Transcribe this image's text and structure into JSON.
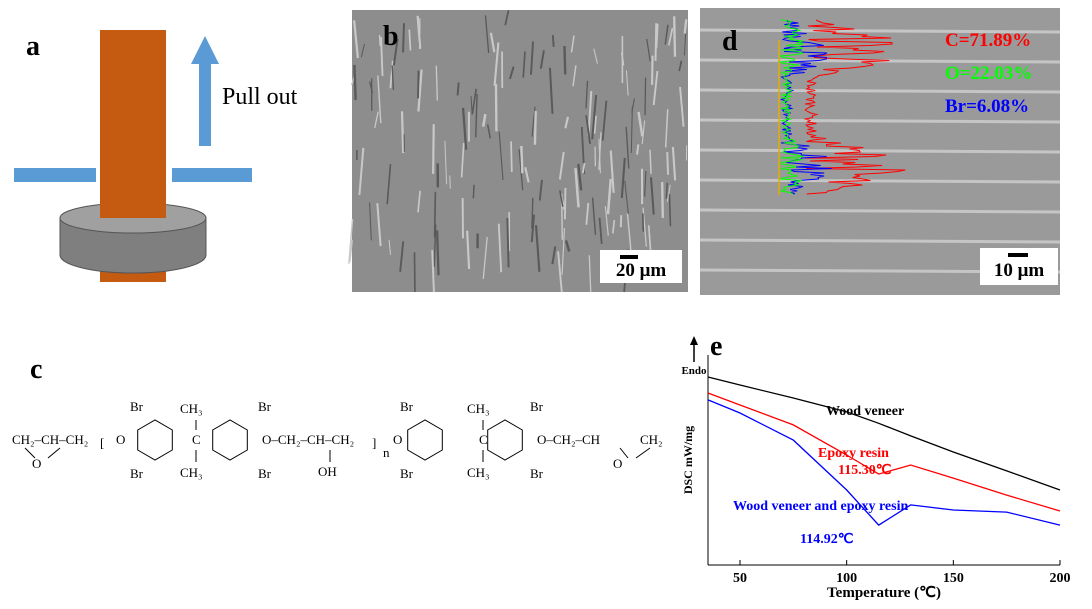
{
  "panels": {
    "a": {
      "label": "a",
      "annotation": "Pull out"
    },
    "b": {
      "label": "b",
      "scale_bar": "20 μm"
    },
    "c": {
      "label": "c",
      "fragments": [
        "CH₂–CH–CH₂",
        "O",
        "[",
        "O",
        "Br",
        "Br",
        "CH₃",
        "C",
        "CH₃",
        "Br",
        "Br",
        "O–CH₂–CH–CH₂",
        "OH",
        "]",
        "n",
        "O",
        "Br",
        "Br",
        "CH₃",
        "C",
        "CH₃",
        "Br",
        "Br",
        "O–CH₂–CH",
        "CH₂",
        "O"
      ]
    },
    "d": {
      "label": "d",
      "scale_bar": "10 μm",
      "annotations": [
        "C=71.89%",
        "O=22.03%",
        "Br=6.08%"
      ]
    }
  },
  "chart_data": {
    "type": "line",
    "label": "e",
    "endo": "Endo",
    "y_label": "DSC mW/mg",
    "x_label": "Temperature (℃)",
    "x": [
      35,
      50,
      75,
      100,
      115,
      130,
      150,
      175,
      200
    ],
    "xlim": [
      35,
      200
    ],
    "xticks": [
      50,
      100,
      150,
      200
    ],
    "ylim": [
      0,
      100
    ],
    "series": [
      {
        "name": "Wood veneer",
        "color": "#000000",
        "values": [
          89.5,
          85.7,
          79.5,
          72.9,
          67.5,
          61.5,
          53.8,
          44.8,
          35.7
        ]
      },
      {
        "name": "Epoxy resin",
        "color": "#ff0000",
        "values": [
          81.9,
          76.2,
          66.7,
          52.4,
          43.3,
          47.6,
          41.4,
          33.3,
          25.7
        ]
      },
      {
        "name": "Wood veneer and epoxy resin",
        "color": "#0000ff",
        "values": [
          78.6,
          72.4,
          59.5,
          35.7,
          19.0,
          28.6,
          26.2,
          25.2,
          19.0
        ]
      }
    ],
    "annotations": [
      {
        "text": "115.30℃",
        "color": "#ff0000"
      },
      {
        "text": "114.92℃",
        "color": "#0000ff"
      }
    ]
  }
}
